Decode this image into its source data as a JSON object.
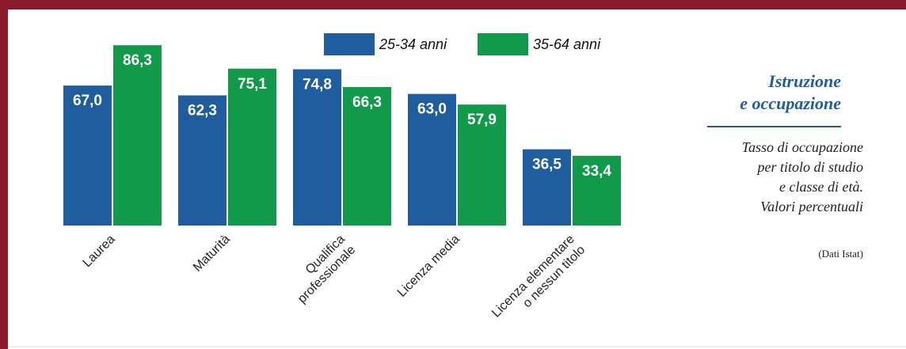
{
  "chart_data": {
    "type": "bar",
    "title": [
      "Istruzione",
      "e occupazione"
    ],
    "subtitle": [
      "Tasso di occupazione",
      "per titolo di studio",
      "e classe di età.",
      "Valori percentuali"
    ],
    "source": "(Dati Istat)",
    "categories": [
      [
        "Laurea"
      ],
      [
        "Maturità"
      ],
      [
        "Qualifica",
        "professionale"
      ],
      [
        "Licenza media"
      ],
      [
        "Licenza elementare",
        "o nessun titolo"
      ]
    ],
    "series": [
      {
        "name": "25-34 anni",
        "color": "#1f5d9e",
        "values": [
          67.0,
          62.3,
          74.8,
          63.0,
          36.5
        ],
        "value_labels": [
          "67,0",
          "62,3",
          "74,8",
          "63,0",
          "36,5"
        ]
      },
      {
        "name": "35-64 anni",
        "color": "#109a4a",
        "values": [
          86.3,
          75.1,
          66.3,
          57.9,
          33.4
        ],
        "value_labels": [
          "86,3",
          "75,1",
          "66,3",
          "57,9",
          "33,4"
        ]
      }
    ]
  }
}
